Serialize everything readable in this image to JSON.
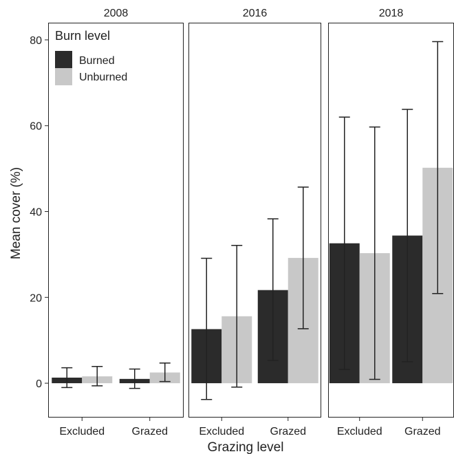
{
  "chart_data": {
    "type": "bar",
    "xlabel": "Grazing level",
    "ylabel": "Mean cover (%)",
    "ylim": [
      -8,
      84
    ],
    "yticks": [
      0,
      20,
      40,
      60,
      80
    ],
    "categories": [
      "Excluded",
      "Grazed"
    ],
    "legend": {
      "title": "Burn level",
      "position": "top-left",
      "entries": [
        {
          "name": "Burned",
          "color": "#2b2b2b"
        },
        {
          "name": "Unburned",
          "color": "#c8c8c8"
        }
      ]
    },
    "panels": [
      {
        "facet": "2008",
        "series": [
          {
            "name": "Burned",
            "values": [
              1.3,
              1.0
            ],
            "lower": [
              -1.0,
              -1.2
            ],
            "upper": [
              3.6,
              3.3
            ]
          },
          {
            "name": "Unburned",
            "values": [
              1.6,
              2.5
            ],
            "lower": [
              -0.6,
              0.4
            ],
            "upper": [
              3.9,
              4.7
            ]
          }
        ]
      },
      {
        "facet": "2016",
        "series": [
          {
            "name": "Burned",
            "values": [
              12.6,
              21.7
            ],
            "lower": [
              -3.8,
              5.3
            ],
            "upper": [
              29.1,
              38.3
            ]
          },
          {
            "name": "Unburned",
            "values": [
              15.6,
              29.2
            ],
            "lower": [
              -0.9,
              12.7
            ],
            "upper": [
              32.1,
              45.7
            ]
          }
        ]
      },
      {
        "facet": "2018",
        "series": [
          {
            "name": "Burned",
            "values": [
              32.6,
              34.4
            ],
            "lower": [
              3.2,
              5.0
            ],
            "upper": [
              62.0,
              63.8
            ]
          },
          {
            "name": "Unburned",
            "values": [
              30.3,
              50.2
            ],
            "lower": [
              0.9,
              20.9
            ],
            "upper": [
              59.7,
              79.6
            ]
          }
        ]
      }
    ]
  }
}
